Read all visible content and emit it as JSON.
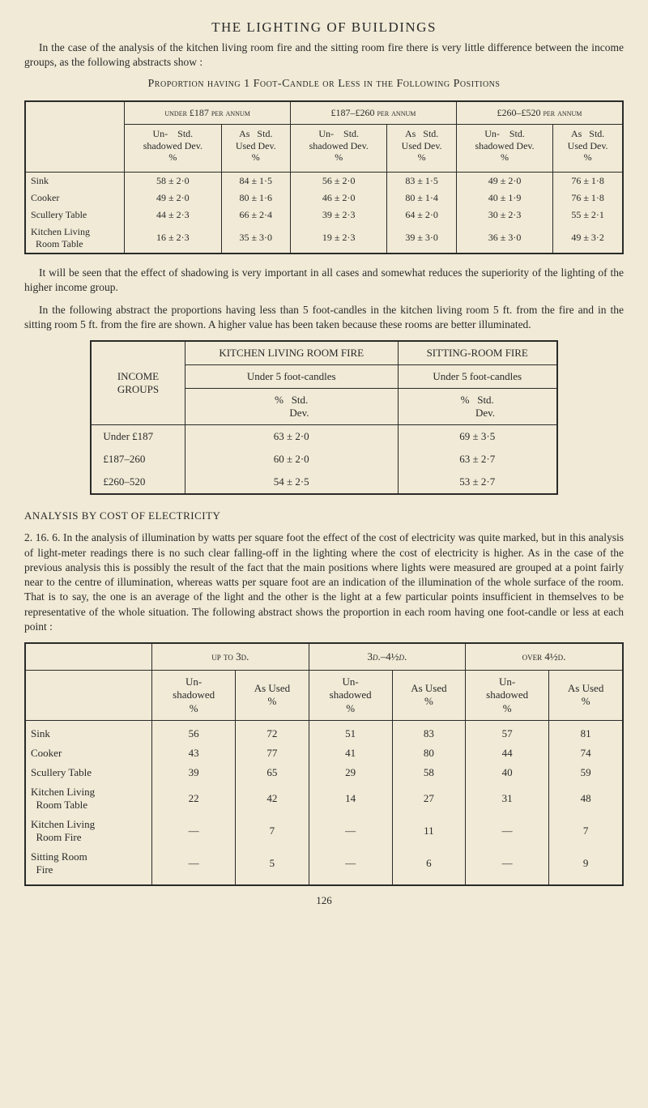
{
  "page": {
    "title": "THE LIGHTING OF BUILDINGS",
    "intro": "In the case of the analysis of the kitchen living room fire and the sitting room fire there is very little difference between the income groups, as the following abstracts show :",
    "table1_caption": "Proportion having 1 Foot-Candle or Less in the Following Positions",
    "para2a": "It will be seen that the effect of shadowing is very important in all cases and somewhat reduces the superiority of the lighting of the higher income group.",
    "para2b": "In the following abstract the proportions having less than 5 foot-candles in the kitchen living room 5 ft. from the fire and in the sitting room 5 ft. from the fire are shown. A higher value has been taken because these rooms are better illuminated.",
    "section2_caption": "ANALYSIS BY COST OF ELECTRICITY",
    "para3": "2. 16. 6.   In the analysis of illumination by watts per square foot the effect of the cost of electricity was quite marked, but in this analysis of light-meter readings there is no such clear falling-off in the lighting where the cost of electricity is higher. As in the case of the previous analysis this is possibly the result of the fact that the main positions where lights were measured are grouped at a point fairly near to the centre of illumination, whereas watts per square foot are an indication of the illumination of the whole surface of the room. That is to say, the one is an average of the light and the other is the light at a few particular points insufficient in themselves to be representative of the whole situation. The following abstract shows the proportion in each room having one foot-candle or less at each point :",
    "page_number": "126"
  },
  "t1": {
    "groups": [
      "under £187 per annum",
      "£187–£260 per annum",
      "£260–£520 per annum"
    ],
    "subhead_un": "Un-    Std.\nshadowed Dev.\n%",
    "subhead_as": "As   Std.\nUsed Dev.\n%",
    "rows": [
      {
        "name": "Sink",
        "cells": [
          "58  ±  2·0",
          "84  ±  1·5",
          "56  ±  2·0",
          "83  ±  1·5",
          "49  ±  2·0",
          "76  ±  1·8"
        ]
      },
      {
        "name": "Cooker",
        "cells": [
          "49  ±  2·0",
          "80  ±  1·6",
          "46  ±  2·0",
          "80  ±  1·4",
          "40  ±  1·9",
          "76  ±  1·8"
        ]
      },
      {
        "name": "Scullery Table",
        "cells": [
          "44  ±  2·3",
          "66  ±  2·4",
          "39  ±  2·3",
          "64  ±  2·0",
          "30  ±  2·3",
          "55  ±  2·1"
        ]
      },
      {
        "name": "Kitchen Living\n  Room Table",
        "cells": [
          "16  ±  2·3",
          "35  ±  3·0",
          "19  ±  2·3",
          "39  ±  3·0",
          "36  ±  3·0",
          "49  ±  3·2"
        ]
      }
    ]
  },
  "t2": {
    "rowhead": "INCOME\nGROUPS",
    "col_heads": [
      "KITCHEN LIVING ROOM FIRE",
      "SITTING-ROOM FIRE"
    ],
    "sub_head": "Under 5 foot-candles",
    "sub_sub": "%   Std.\n      Dev.",
    "rows": [
      {
        "name": "Under £187",
        "c1": "63  ±  2·0",
        "c2": "69  ±  3·5"
      },
      {
        "name": "£187–260",
        "c1": "60  ±  2·0",
        "c2": "63  ±  2·7"
      },
      {
        "name": "£260–520",
        "c1": "54  ±  2·5",
        "c2": "53  ±  2·7"
      }
    ]
  },
  "t3": {
    "groups": [
      "up to 3d.",
      "3d.–4½d.",
      "over 4½d."
    ],
    "sub_un": "Un-\nshadowed\n%",
    "sub_as": "As Used\n%",
    "rows": [
      {
        "name": "Sink",
        "c": [
          "56",
          "72",
          "51",
          "83",
          "57",
          "81"
        ]
      },
      {
        "name": "Cooker",
        "c": [
          "43",
          "77",
          "41",
          "80",
          "44",
          "74"
        ]
      },
      {
        "name": "Scullery Table",
        "c": [
          "39",
          "65",
          "29",
          "58",
          "40",
          "59"
        ]
      },
      {
        "name": "Kitchen Living\n  Room Table",
        "c": [
          "22",
          "42",
          "14",
          "27",
          "31",
          "48"
        ]
      },
      {
        "name": "Kitchen Living\n  Room Fire",
        "c": [
          "—",
          "7",
          "—",
          "11",
          "—",
          "7"
        ]
      },
      {
        "name": "Sitting Room\n  Fire",
        "c": [
          "—",
          "5",
          "—",
          "6",
          "—",
          "9"
        ]
      }
    ]
  }
}
